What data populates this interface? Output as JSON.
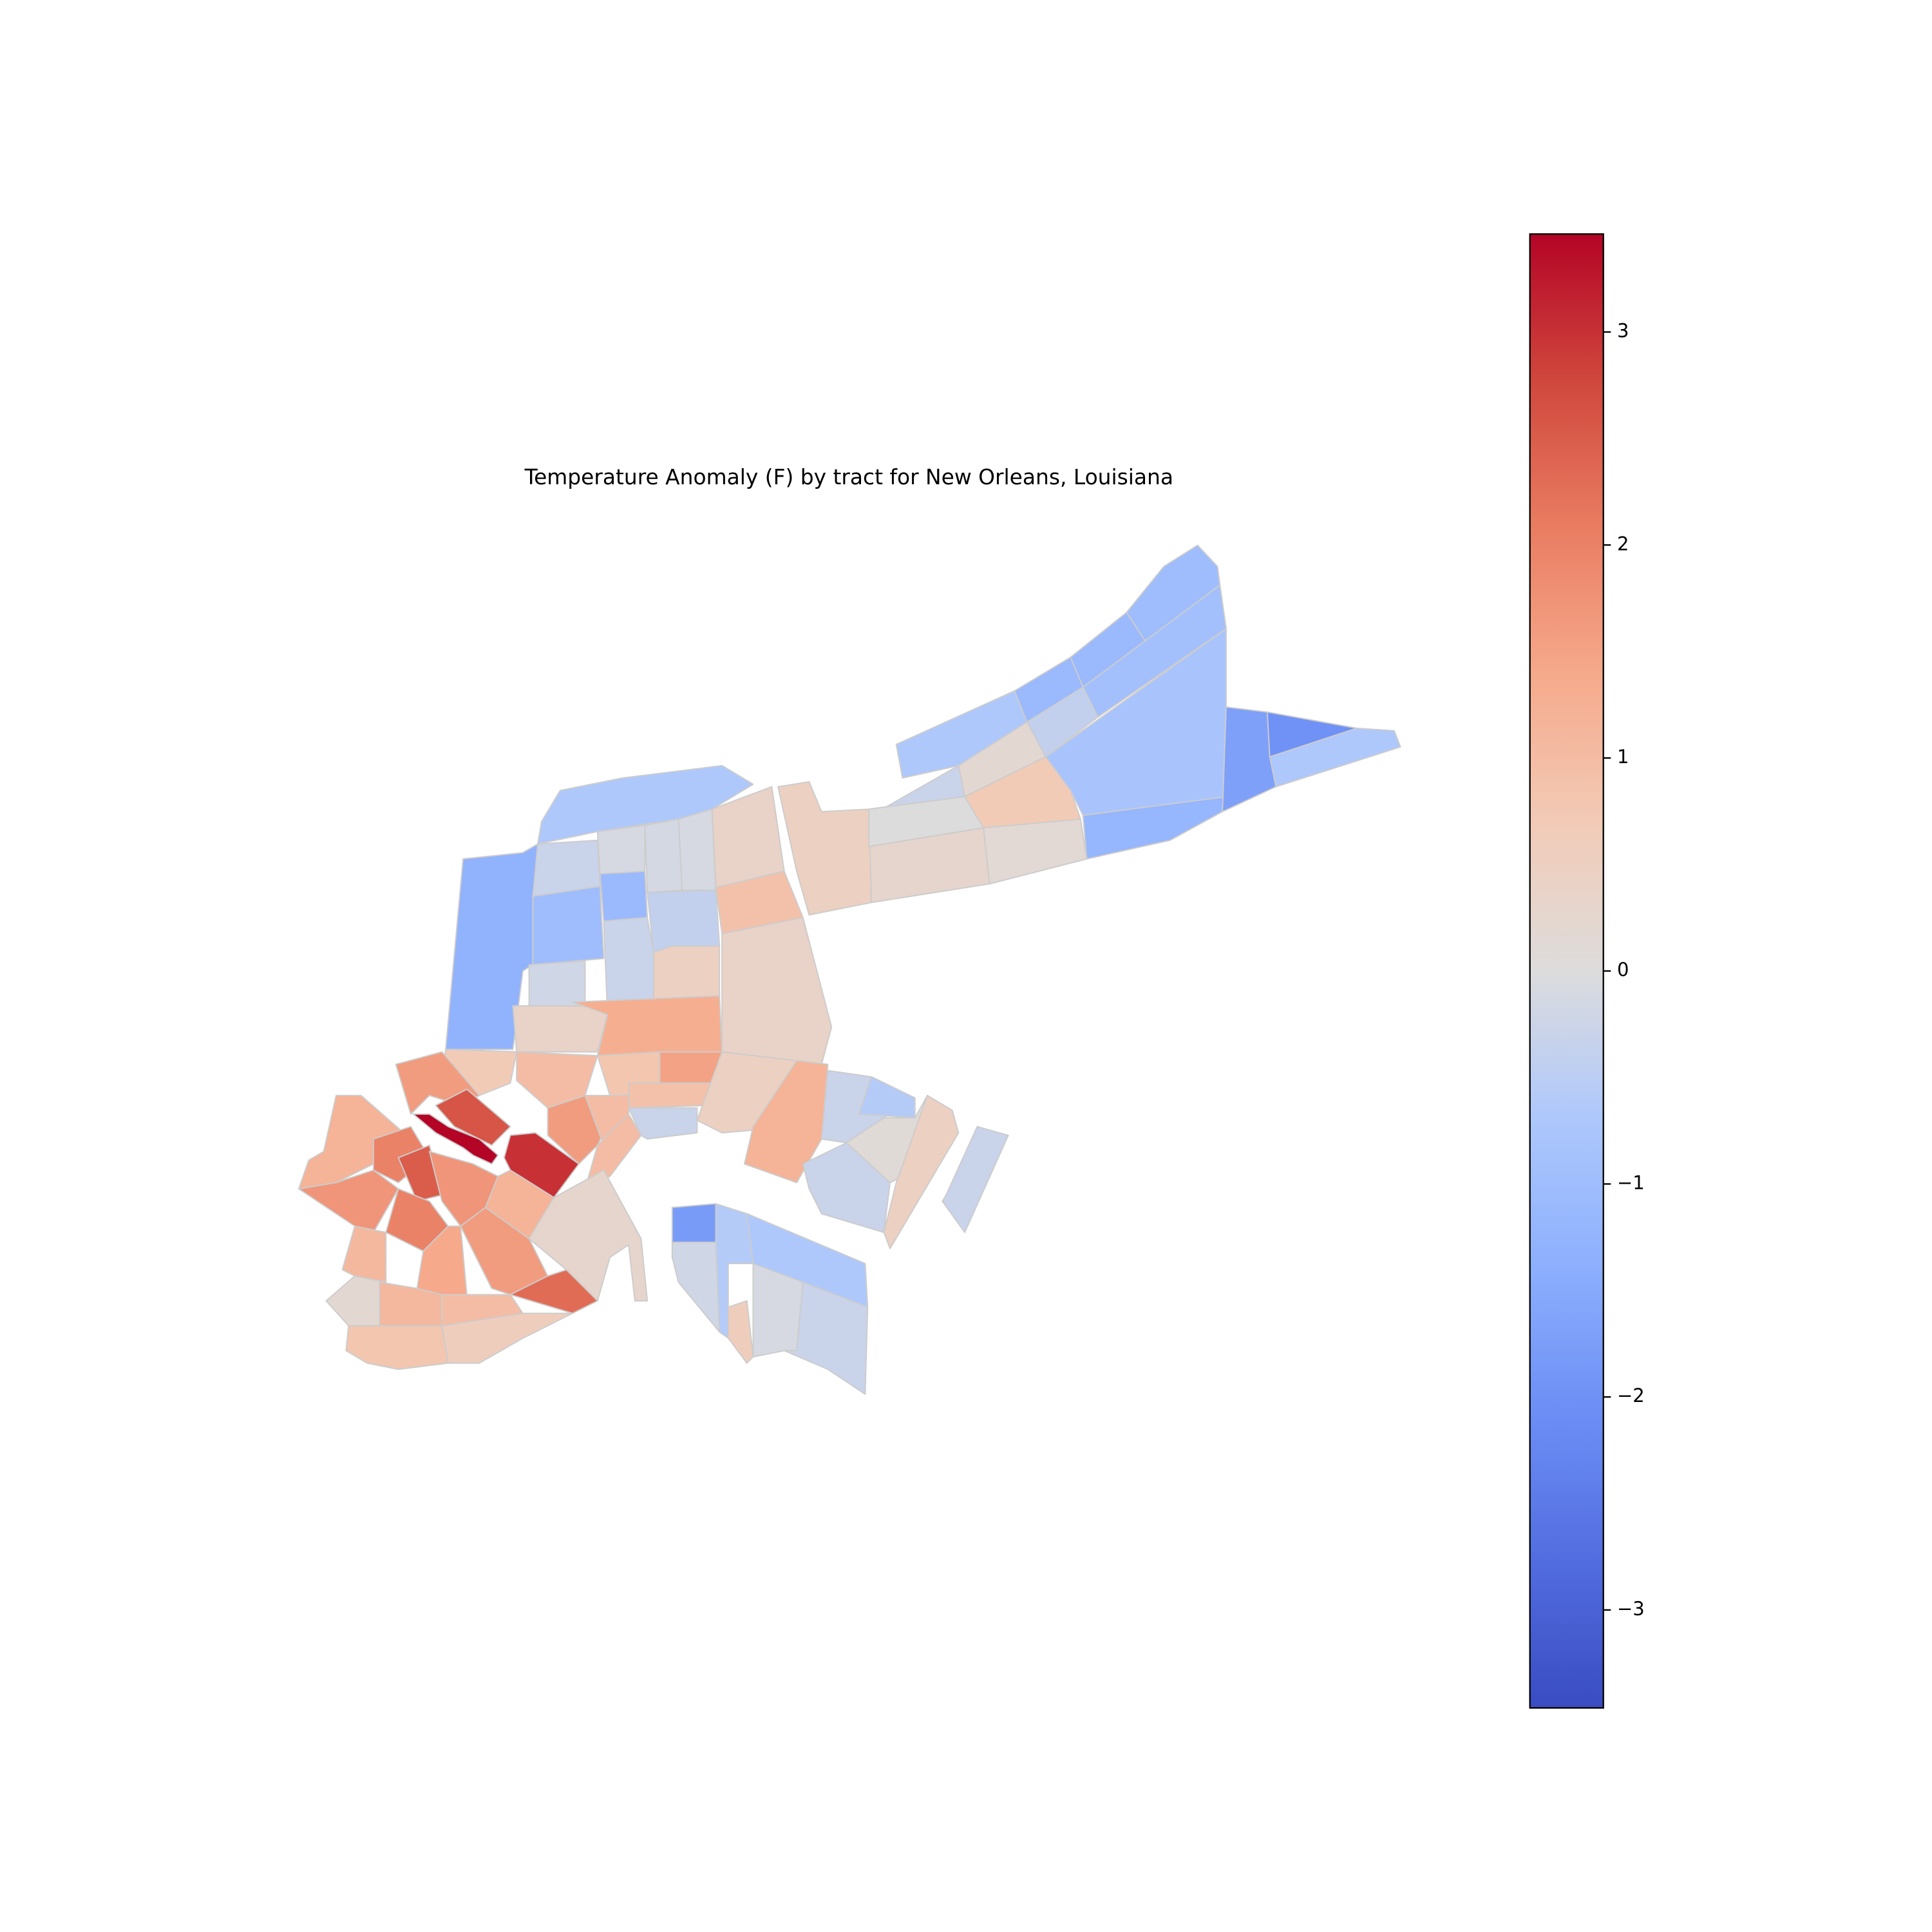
{
  "chart_data": {
    "type": "choropleth",
    "title": "Temperature Anomaly (F) by tract for New Orleans, Louisiana",
    "colormap": "coolwarm",
    "clim": [
      -3.46,
      3.46
    ],
    "cticks": [
      {
        "value": -3,
        "label": "−3"
      },
      {
        "value": -2,
        "label": "−2"
      },
      {
        "value": -1,
        "label": "−1"
      },
      0,
      1,
      2,
      3
    ],
    "values": [
      -0.7,
      -1.1,
      -1.1,
      -1.0,
      -0.9,
      -0.4,
      0.2,
      -0.3,
      -0.8,
      0.7,
      -1.2,
      -1.7,
      -2.0,
      -0.7,
      0.3,
      0.15,
      0.5,
      0.0,
      -0.7,
      -1.3,
      -0.3,
      -1.0,
      -0.1,
      -1.1,
      -0.15,
      -0.1,
      -0.4,
      0.4,
      0.9,
      0.4,
      -0.3,
      -0.2,
      0.5,
      0.4,
      1.3,
      0.7,
      1.6,
      1.0,
      0.8,
      1.5,
      0.9,
      0.5,
      1.2,
      -0.3,
      -0.6,
      0.1,
      0.5,
      -0.3,
      -0.3,
      3.45,
      2.6,
      3.0,
      1.6,
      1.0,
      1.0,
      -0.3,
      1.2,
      2.0,
      2.5,
      1.7,
      1.7,
      1.2,
      0.3,
      2.0,
      1.1,
      1.4,
      1.6,
      2.3,
      0.2,
      1.1,
      1.0,
      0.8,
      0.6,
      -1.8,
      -0.6,
      -0.2,
      -0.7,
      0.6,
      -0.1,
      -0.3
    ]
  }
}
